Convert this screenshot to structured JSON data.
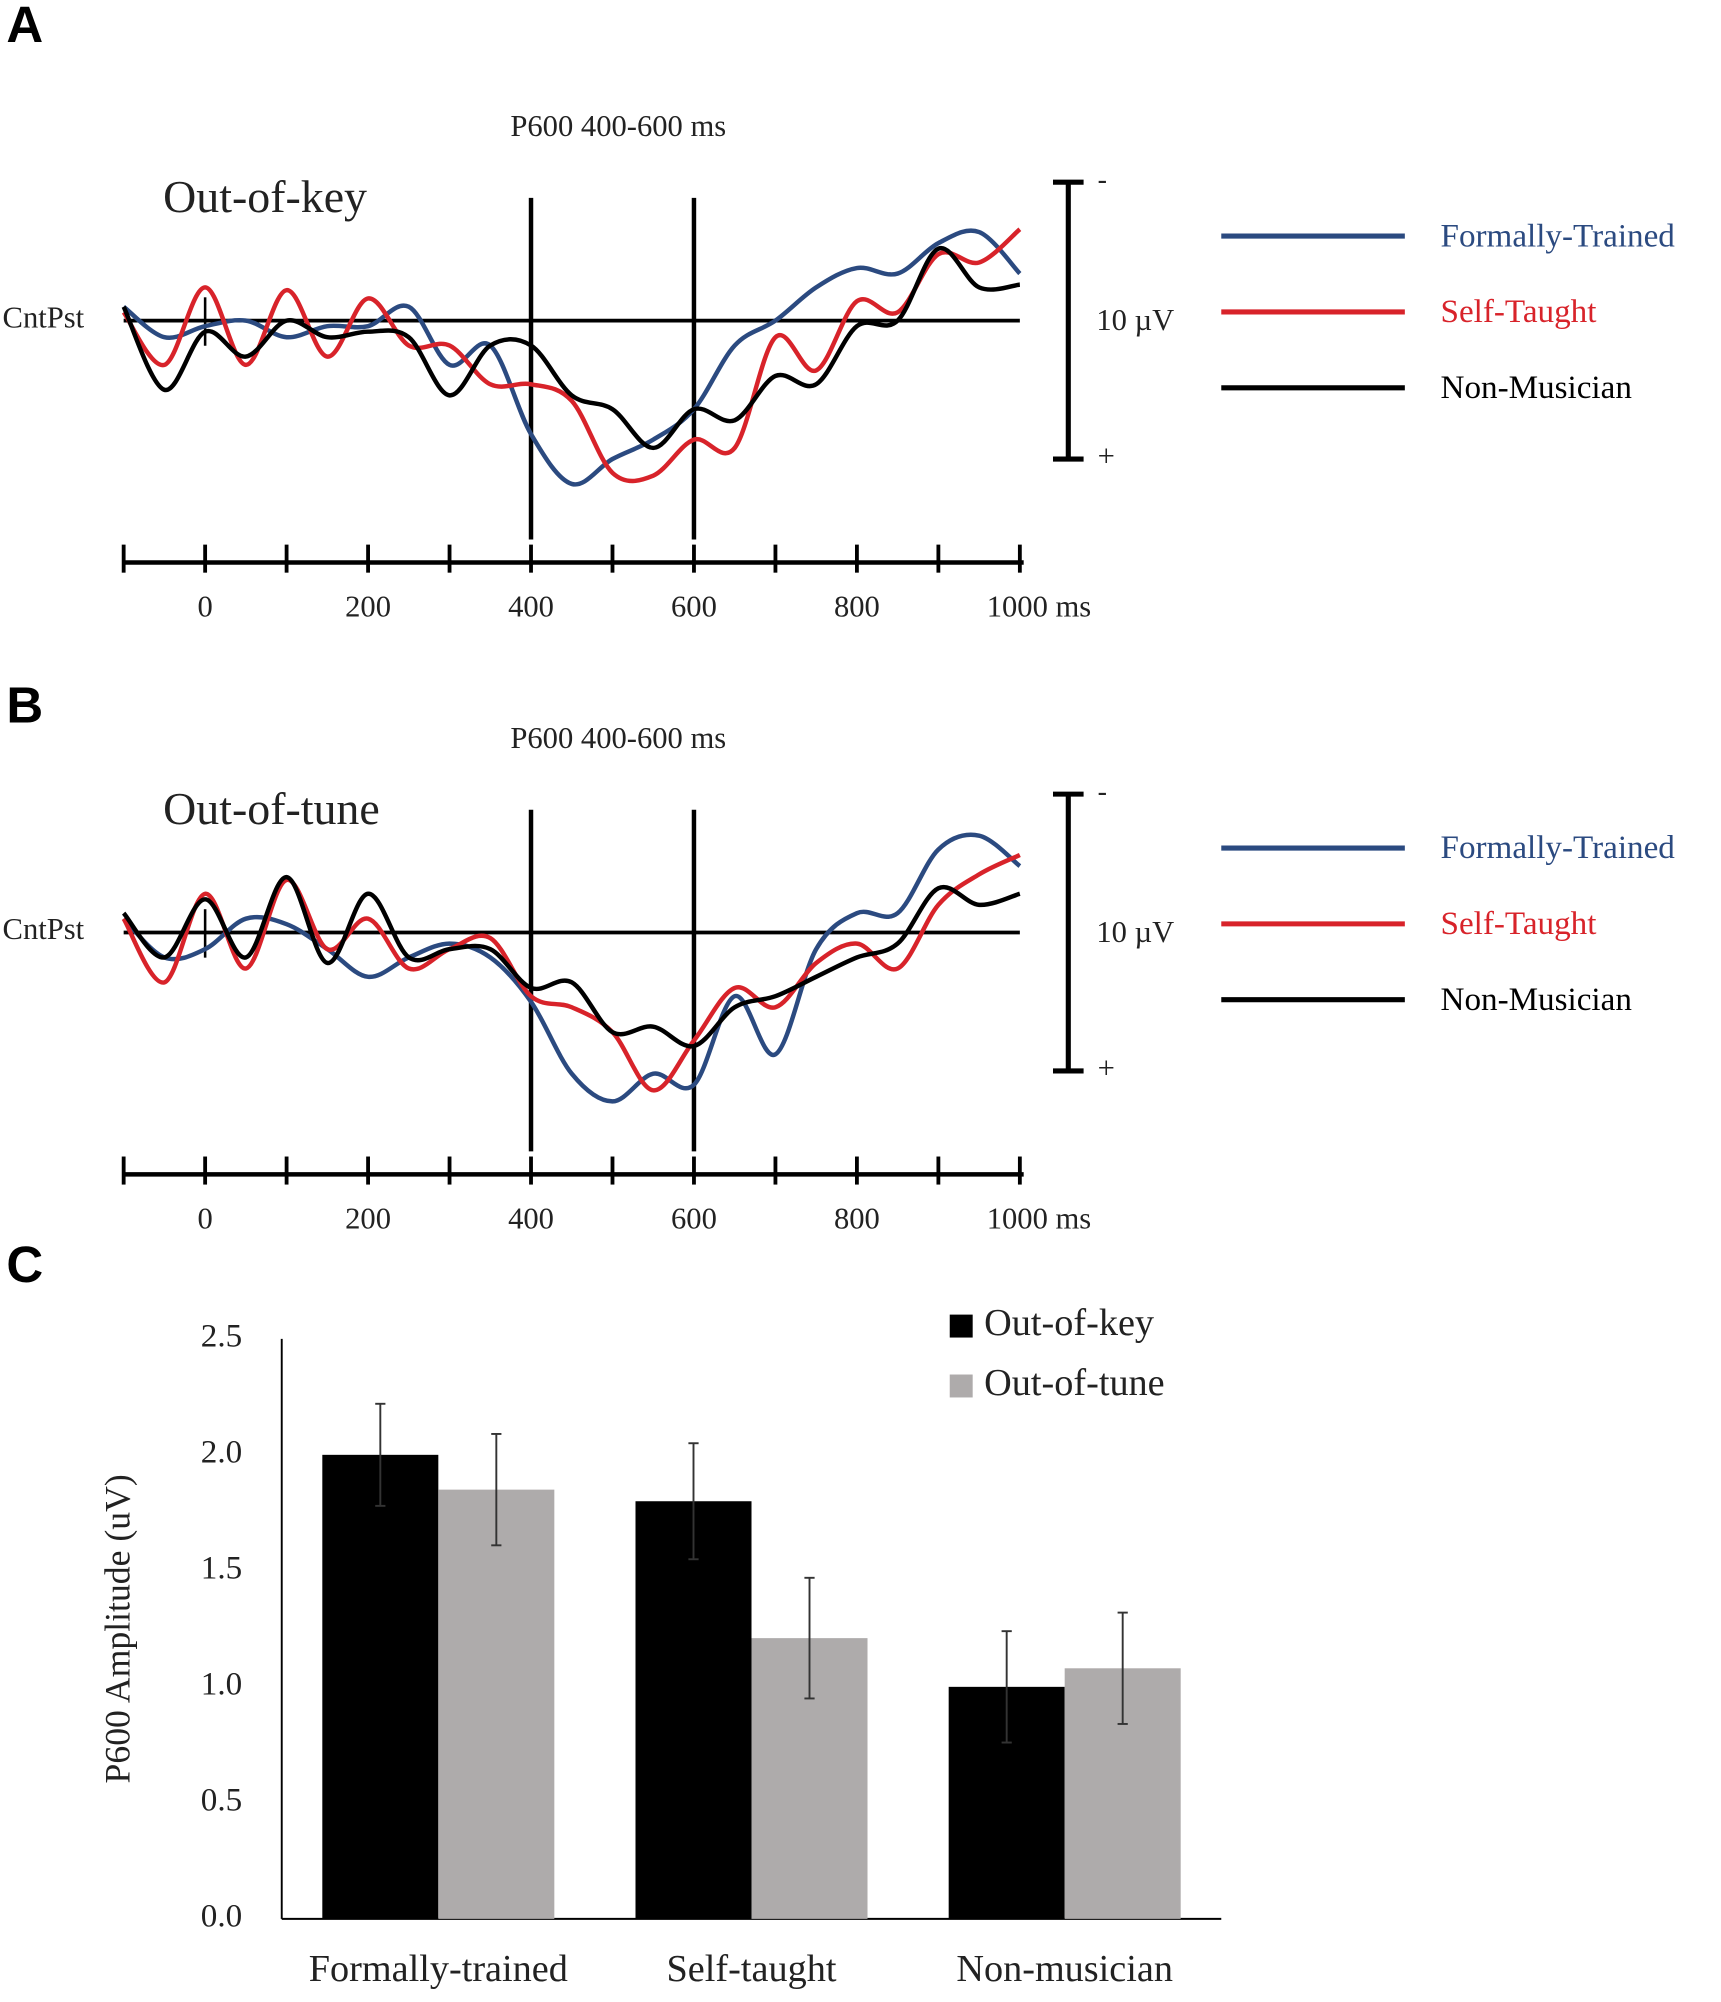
{
  "chart_data": [
    {
      "type": "line",
      "panel": "A",
      "title": "P600 400-600 ms",
      "subtitle": "Out-of-key",
      "ylabel": "CntPst",
      "x": [
        -100,
        -50,
        0,
        50,
        100,
        150,
        200,
        250,
        300,
        350,
        400,
        450,
        500,
        550,
        600,
        650,
        700,
        750,
        800,
        850,
        900,
        950,
        1000
      ],
      "xlim": [
        -100,
        1000
      ],
      "xticks": [
        0,
        200,
        400,
        600,
        800,
        {
          "value": 1000,
          "label": "1000 ms"
        }
      ],
      "minor_xticks": [
        -100,
        0,
        100,
        200,
        300,
        400,
        500,
        600,
        700,
        800,
        900,
        1000
      ],
      "ylim": [
        -6,
        8
      ],
      "y_inverted": true,
      "yticks": [
        0
      ],
      "highlight_window": [
        400,
        600
      ],
      "scale_bar": {
        "range": [
          -5,
          5
        ],
        "label": "10 µV",
        "ends": [
          "-",
          "+"
        ]
      },
      "series": [
        {
          "name": "Formally-Trained",
          "color": "#2b4a80",
          "values": [
            -0.5,
            0.6,
            0.2,
            0,
            0.6,
            0.2,
            0.2,
            -0.5,
            1.6,
            0.9,
            4.1,
            5.9,
            5.0,
            4.3,
            3.2,
            0.9,
            0,
            -1.2,
            -1.9,
            -1.7,
            -2.8,
            -3.2,
            -1.7
          ]
        },
        {
          "name": "Self-Taught",
          "color": "#d8232a",
          "values": [
            -0.3,
            1.6,
            -1.2,
            1.6,
            -1.1,
            1.3,
            -0.8,
            0.9,
            0.9,
            2.3,
            2.3,
            2.9,
            5.5,
            5.6,
            4.3,
            4.6,
            0.6,
            1.8,
            -0.7,
            -0.3,
            -2.4,
            -2.1,
            -3.3
          ]
        },
        {
          "name": "Non-Musician",
          "color": "#000000",
          "values": [
            -0.5,
            2.5,
            0.4,
            1.3,
            0,
            0.6,
            0.4,
            0.6,
            2.7,
            0.9,
            0.9,
            2.7,
            3.2,
            4.6,
            3.2,
            3.6,
            2.0,
            2.3,
            0.2,
            0,
            -2.6,
            -1.2,
            -1.3
          ]
        }
      ]
    },
    {
      "type": "line",
      "panel": "B",
      "title": "P600 400-600 ms",
      "subtitle": "Out-of-tune",
      "ylabel": "CntPst",
      "x": [
        -100,
        -50,
        0,
        50,
        100,
        150,
        200,
        250,
        300,
        350,
        400,
        450,
        500,
        550,
        600,
        650,
        700,
        750,
        800,
        850,
        900,
        950,
        1000
      ],
      "xlim": [
        -100,
        1000
      ],
      "xticks": [
        0,
        200,
        400,
        600,
        800,
        {
          "value": 1000,
          "label": "1000 ms"
        }
      ],
      "minor_xticks": [
        -100,
        0,
        100,
        200,
        300,
        400,
        500,
        600,
        700,
        800,
        900,
        1000
      ],
      "ylim": [
        -6,
        8
      ],
      "y_inverted": true,
      "yticks": [
        0
      ],
      "highlight_window": [
        400,
        600
      ],
      "scale_bar": {
        "range": [
          -5,
          5
        ],
        "label": "10 µV",
        "ends": [
          "-",
          "+"
        ]
      },
      "series": [
        {
          "name": "Formally-Trained",
          "color": "#2b4a80",
          "values": [
            -0.5,
            0.9,
            0.6,
            -0.5,
            -0.3,
            0.6,
            1.6,
            0.9,
            0.4,
            0.9,
            2.5,
            5.1,
            6.1,
            5.1,
            5.5,
            2.3,
            4.4,
            0.6,
            -0.7,
            -0.7,
            -3.0,
            -3.5,
            -2.4
          ]
        },
        {
          "name": "Self-Taught",
          "color": "#d8232a",
          "values": [
            -0.5,
            1.8,
            -1.4,
            1.3,
            -1.9,
            0.6,
            -0.5,
            1.3,
            0.6,
            0.2,
            2.3,
            2.7,
            3.6,
            5.7,
            3.9,
            2.0,
            2.7,
            1.1,
            0.4,
            1.3,
            -1.0,
            -2.1,
            -2.8
          ]
        },
        {
          "name": "Non-Musician",
          "color": "#000000",
          "values": [
            -0.7,
            0.9,
            -1.2,
            0.9,
            -2.0,
            1.1,
            -1.4,
            0.9,
            0.6,
            0.6,
            2.0,
            1.8,
            3.6,
            3.4,
            4.1,
            2.7,
            2.3,
            1.6,
            0.9,
            0.4,
            -1.6,
            -1.0,
            -1.4
          ]
        }
      ]
    },
    {
      "type": "bar",
      "panel": "C",
      "ylabel": "P600 Amplitude (uV)",
      "categories": [
        "Formally-trained",
        "Self-taught",
        "Non-musician"
      ],
      "ylim": [
        0,
        2.5
      ],
      "yticks": [
        {
          "value": 0,
          "label": "0.0"
        },
        {
          "value": 0.5,
          "label": "0.5"
        },
        {
          "value": 1,
          "label": "1.0"
        },
        {
          "value": 1.5,
          "label": "1.5"
        },
        {
          "value": 2,
          "label": "2.0"
        },
        {
          "value": 2.5,
          "label": "2.5"
        }
      ],
      "series": [
        {
          "name": "Out-of-key",
          "color": "#000000",
          "values": [
            2.0,
            1.8,
            1.0
          ],
          "errors": [
            0.22,
            0.25,
            0.24
          ]
        },
        {
          "name": "Out-of-tune",
          "color": "#aeabab",
          "values": [
            1.85,
            1.21,
            1.08
          ],
          "errors": [
            0.24,
            0.26,
            0.24
          ]
        }
      ]
    }
  ]
}
